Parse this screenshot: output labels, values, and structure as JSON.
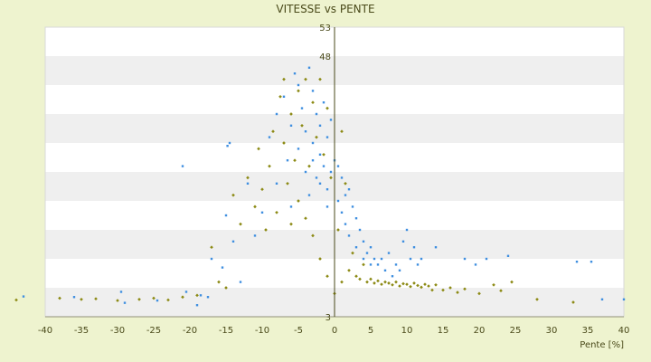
{
  "chart_data": {
    "type": "scatter",
    "title": "VITESSE vs PENTE",
    "xlabel": "Pente [%]",
    "ylabel": "",
    "xlim": [
      -40,
      40
    ],
    "ylim": [
      3,
      53
    ],
    "x_ticks": [
      -40,
      -35,
      -30,
      -25,
      -20,
      -15,
      -10,
      -5,
      0,
      5,
      10,
      15,
      20,
      25,
      30,
      35,
      40
    ],
    "y_ticks": [
      3,
      48,
      53
    ],
    "grid": "horizontal bands",
    "legend": "none",
    "series": [
      {
        "color": "#3f8fe0",
        "marker": "small square",
        "points": [
          [
            -43,
            6.5
          ],
          [
            -36,
            6.4
          ],
          [
            -29.5,
            7.3
          ],
          [
            -29,
            5.4
          ],
          [
            -24.5,
            5.8
          ],
          [
            -21,
            29
          ],
          [
            -20.5,
            7.3
          ],
          [
            -19,
            5
          ],
          [
            -18.5,
            6.7
          ],
          [
            -17.5,
            6.4
          ],
          [
            -17,
            13
          ],
          [
            -15.5,
            11.5
          ],
          [
            -14.5,
            33
          ],
          [
            -14.8,
            32.5
          ],
          [
            -15,
            20.5
          ],
          [
            -14,
            16
          ],
          [
            -13,
            9
          ],
          [
            -12,
            26
          ],
          [
            -11,
            17
          ],
          [
            -10,
            21
          ],
          [
            -9,
            34
          ],
          [
            -8,
            38
          ],
          [
            -8,
            26
          ],
          [
            -7,
            41
          ],
          [
            -6.5,
            30
          ],
          [
            -6,
            36
          ],
          [
            -6,
            22
          ],
          [
            -5.5,
            45
          ],
          [
            -5,
            43
          ],
          [
            -5,
            32
          ],
          [
            -4.5,
            39
          ],
          [
            -4,
            28
          ],
          [
            -4,
            35
          ],
          [
            -3.5,
            46
          ],
          [
            -3.5,
            24
          ],
          [
            -3,
            42
          ],
          [
            -3,
            33
          ],
          [
            -3,
            30
          ],
          [
            -2.5,
            38
          ],
          [
            -2.5,
            27
          ],
          [
            -2,
            36
          ],
          [
            -2,
            26
          ],
          [
            -2,
            31
          ],
          [
            -1.5,
            40
          ],
          [
            -1.5,
            29
          ],
          [
            -1,
            34
          ],
          [
            -1,
            25
          ],
          [
            -1,
            22
          ],
          [
            -0.5,
            37
          ],
          [
            -0.5,
            28
          ],
          [
            0,
            30
          ],
          [
            0.5,
            29
          ],
          [
            0.5,
            23
          ],
          [
            1,
            27
          ],
          [
            1,
            21
          ],
          [
            1.5,
            24
          ],
          [
            1.5,
            19
          ],
          [
            2,
            25
          ],
          [
            2,
            17
          ],
          [
            2.5,
            22
          ],
          [
            3,
            20
          ],
          [
            3,
            15
          ],
          [
            3.5,
            18
          ],
          [
            4,
            16
          ],
          [
            4,
            13
          ],
          [
            4.5,
            14
          ],
          [
            5,
            15
          ],
          [
            5,
            12
          ],
          [
            5.5,
            13
          ],
          [
            6,
            12
          ],
          [
            6.5,
            13
          ],
          [
            7,
            11
          ],
          [
            7.5,
            14
          ],
          [
            8,
            10
          ],
          [
            8.5,
            12
          ],
          [
            9,
            11
          ],
          [
            9.5,
            16
          ],
          [
            10,
            18
          ],
          [
            10.5,
            13
          ],
          [
            11,
            15
          ],
          [
            11.5,
            12
          ],
          [
            12,
            13
          ],
          [
            14,
            15
          ],
          [
            18,
            13
          ],
          [
            19.5,
            12
          ],
          [
            21,
            13
          ],
          [
            24,
            13.5
          ],
          [
            33.5,
            12.5
          ],
          [
            35.5,
            12.5
          ],
          [
            37,
            6
          ],
          [
            40,
            6
          ]
        ]
      },
      {
        "color": "#8c8a14",
        "marker": "small diamond",
        "points": [
          [
            -44,
            5.9
          ],
          [
            -38,
            6.2
          ],
          [
            -35,
            6
          ],
          [
            -33,
            6.1
          ],
          [
            -30,
            5.8
          ],
          [
            -27,
            6
          ],
          [
            -25,
            6.2
          ],
          [
            -23,
            5.9
          ],
          [
            -21,
            6.4
          ],
          [
            -19,
            6.7
          ],
          [
            -17,
            15
          ],
          [
            -16,
            9
          ],
          [
            -15,
            8
          ],
          [
            -14,
            24
          ],
          [
            -13,
            19
          ],
          [
            -12,
            27
          ],
          [
            -11,
            22
          ],
          [
            -10.5,
            32
          ],
          [
            -10,
            25
          ],
          [
            -9.5,
            18
          ],
          [
            -9,
            29
          ],
          [
            -8.5,
            35
          ],
          [
            -8,
            21
          ],
          [
            -7.5,
            41
          ],
          [
            -7,
            33
          ],
          [
            -7,
            44
          ],
          [
            -6.5,
            26
          ],
          [
            -6,
            38
          ],
          [
            -6,
            19
          ],
          [
            -5.5,
            30
          ],
          [
            -5,
            42
          ],
          [
            -5,
            23
          ],
          [
            -4.5,
            36
          ],
          [
            -4,
            20
          ],
          [
            -4,
            44
          ],
          [
            -3.5,
            29
          ],
          [
            -3,
            40
          ],
          [
            -3,
            17
          ],
          [
            -2.5,
            34
          ],
          [
            -2,
            44
          ],
          [
            -2,
            13
          ],
          [
            -1.5,
            31
          ],
          [
            -1,
            39
          ],
          [
            -1,
            10
          ],
          [
            -0.5,
            27
          ],
          [
            0,
            7
          ],
          [
            0.5,
            18
          ],
          [
            1,
            35
          ],
          [
            1,
            9
          ],
          [
            1.5,
            26
          ],
          [
            2,
            11
          ],
          [
            2.5,
            14
          ],
          [
            3,
            10
          ],
          [
            3.5,
            9.5
          ],
          [
            4,
            12
          ],
          [
            4.5,
            9
          ],
          [
            5,
            9.5
          ],
          [
            5.5,
            8.8
          ],
          [
            6,
            9.2
          ],
          [
            6.5,
            8.6
          ],
          [
            7,
            9
          ],
          [
            7.5,
            8.8
          ],
          [
            8,
            8.5
          ],
          [
            8.5,
            9
          ],
          [
            9,
            8.3
          ],
          [
            9.5,
            8.7
          ],
          [
            10,
            8.6
          ],
          [
            10.5,
            8.2
          ],
          [
            11,
            8.8
          ],
          [
            11.5,
            8.4
          ],
          [
            12,
            8.1
          ],
          [
            12.5,
            8.6
          ],
          [
            13,
            8.3
          ],
          [
            13.5,
            7.6
          ],
          [
            14,
            8.5
          ],
          [
            15,
            7.6
          ],
          [
            16,
            8
          ],
          [
            17,
            7.2
          ],
          [
            18,
            7.8
          ],
          [
            20,
            7
          ],
          [
            22,
            8.5
          ],
          [
            23,
            7.5
          ],
          [
            24.5,
            9
          ],
          [
            28,
            6
          ],
          [
            33,
            5.5
          ]
        ]
      }
    ]
  }
}
